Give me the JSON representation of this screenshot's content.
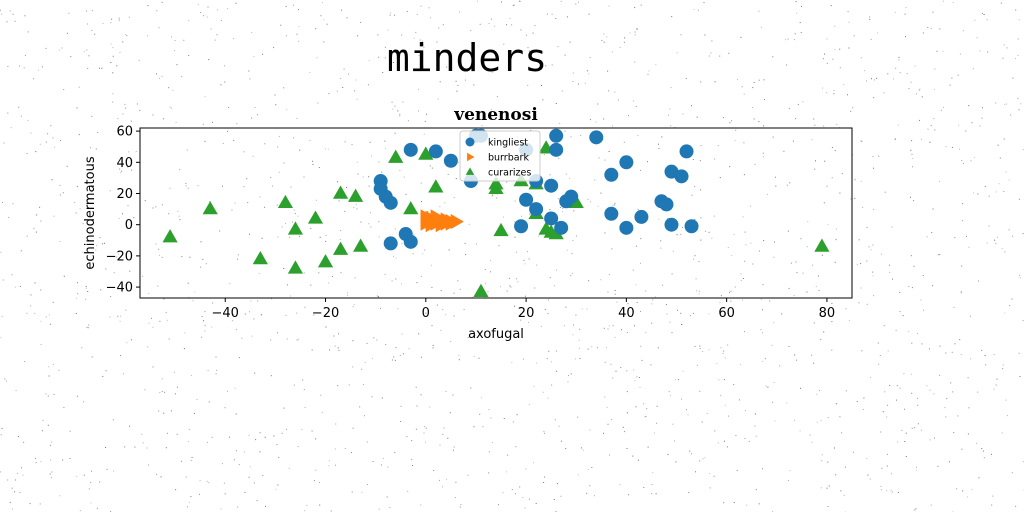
{
  "figure": {
    "title": "minders"
  },
  "chart_data": {
    "type": "scatter",
    "title": "venenosi",
    "xlabel": "axofugal",
    "ylabel": "echinodermatous",
    "xlim": [
      -57,
      85
    ],
    "ylim": [
      -47,
      62
    ],
    "xticks": [
      -40,
      -20,
      0,
      20,
      40,
      60,
      80
    ],
    "yticks": [
      -40,
      -20,
      0,
      20,
      40,
      60
    ],
    "grid": false,
    "legend_position": "top-center",
    "series": [
      {
        "name": "kingliest",
        "marker": "circle",
        "color": "#1f77b4",
        "x": [
          -9,
          -9,
          -8,
          -7,
          -7,
          -4,
          -3,
          -3,
          2,
          5,
          9,
          10,
          11,
          19,
          20,
          20,
          22,
          22,
          25,
          25,
          26,
          26,
          27,
          28,
          29,
          34,
          37,
          37,
          40,
          40,
          43,
          47,
          48,
          49,
          49,
          51,
          52,
          53
        ],
        "y": [
          28,
          23,
          18,
          14,
          -12,
          -6,
          48,
          -11,
          47,
          41,
          28,
          57,
          57,
          -1,
          16,
          48,
          10,
          28,
          25,
          4,
          48,
          57,
          -2,
          15,
          18,
          56,
          32,
          7,
          40,
          -2,
          5,
          15,
          13,
          34,
          0,
          31,
          47,
          -1
        ]
      },
      {
        "name": "burrbark",
        "marker": "triangle-right",
        "color": "#ff7f0e",
        "x": [
          0,
          0,
          0,
          1,
          1,
          1,
          2,
          2,
          2,
          3,
          3,
          4,
          4,
          5,
          5,
          6
        ],
        "y": [
          1,
          3,
          5,
          0,
          2,
          4,
          1,
          3,
          5,
          0,
          2,
          1,
          3,
          1,
          2,
          2
        ]
      },
      {
        "name": "curarizes",
        "marker": "triangle",
        "color": "#2ca02c",
        "x": [
          -51,
          -43,
          -33,
          -28,
          -26,
          -26,
          -22,
          -20,
          -17,
          -17,
          -14,
          -13,
          -6,
          -3,
          0,
          2,
          11,
          14,
          14,
          15,
          19,
          22,
          22,
          24,
          24,
          25,
          26,
          30,
          79
        ],
        "y": [
          -8,
          10,
          -22,
          14,
          -3,
          -28,
          4,
          -24,
          20,
          -16,
          18,
          -14,
          43,
          10,
          45,
          24,
          -43,
          26,
          23,
          -4,
          28,
          7,
          26,
          49,
          -3,
          -5,
          -6,
          14,
          -14
        ]
      }
    ]
  }
}
